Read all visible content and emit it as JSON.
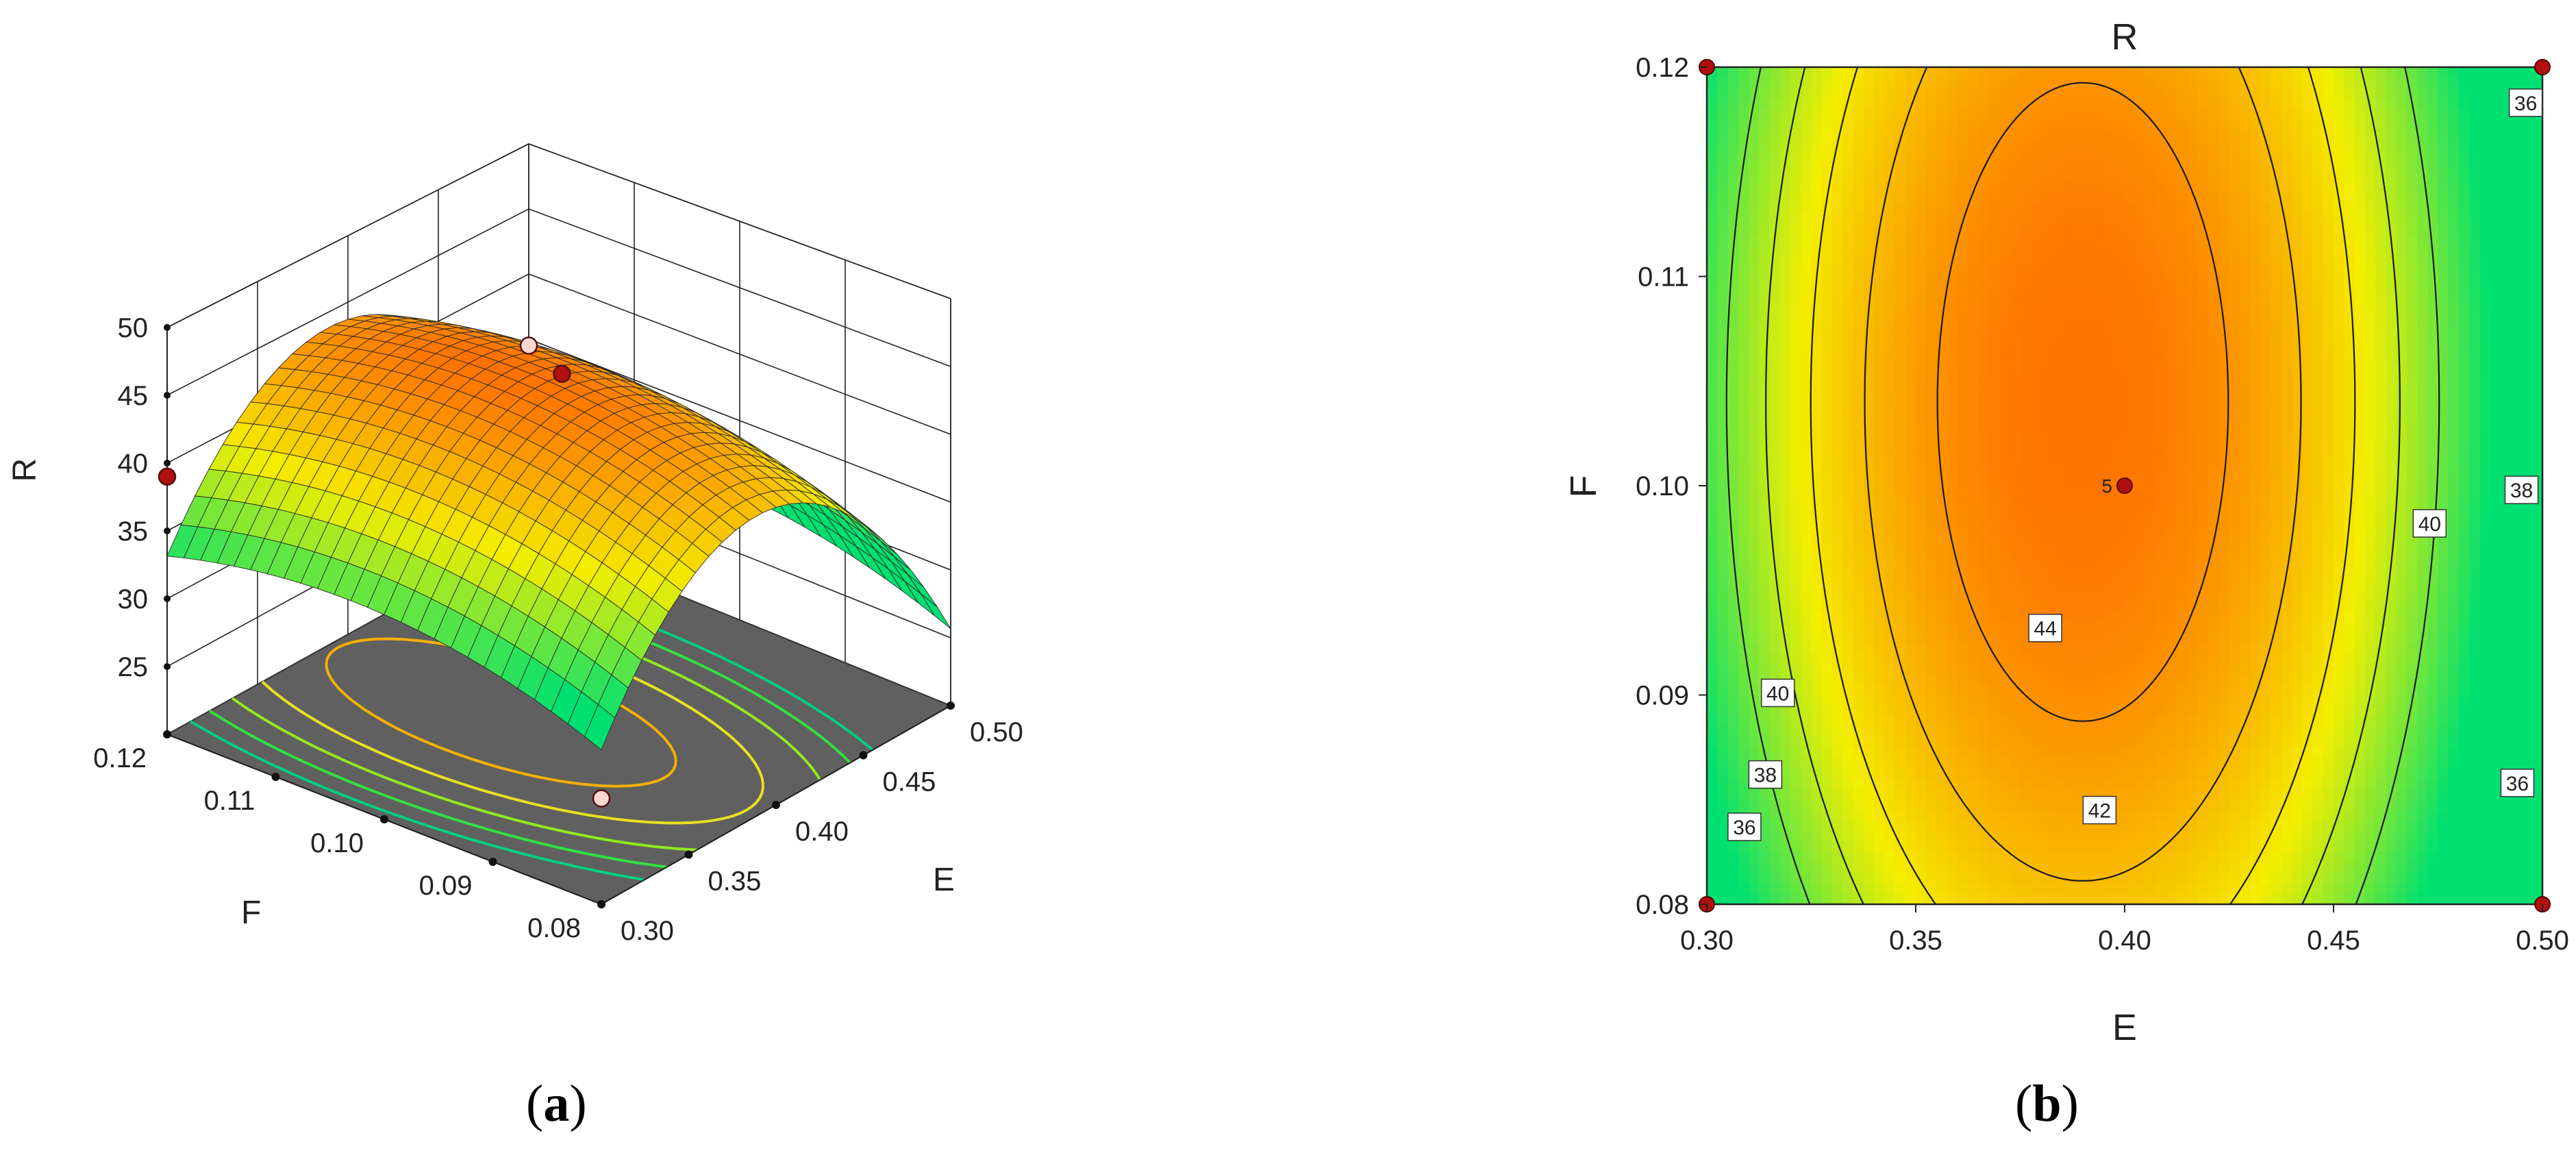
{
  "figure": {
    "panel_a_letter": "a",
    "panel_b_letter": "b"
  },
  "chart_data": [
    {
      "type": "surface3d",
      "panel": "a",
      "zlabel": "R",
      "xlabel": "E",
      "ylabel": "F",
      "x_range": [
        0.3,
        0.5
      ],
      "y_range": [
        0.08,
        0.12
      ],
      "z_range": [
        25,
        50
      ],
      "x_ticks": [
        "0.30",
        "0.35",
        "0.40",
        "0.45",
        "0.50"
      ],
      "y_ticks": [
        "0.08",
        "0.09",
        "0.10",
        "0.11",
        "0.12"
      ],
      "z_ticks": [
        "25",
        "30",
        "35",
        "40",
        "45",
        "50"
      ],
      "grid": true,
      "floor_contours": [
        36,
        38,
        40,
        42,
        44
      ],
      "design_points": [
        {
          "E": 0.4,
          "F": 0.1,
          "R": 45.5,
          "label": "5"
        },
        {
          "E": 0.3,
          "F": 0.12,
          "R": 39.0
        },
        {
          "E": 0.5,
          "F": 0.12,
          "R": 34.5
        },
        {
          "E": 0.3,
          "F": 0.08,
          "R": 27.5
        }
      ],
      "colors": {
        "low": "#00e070",
        "mid": "#f4ee00",
        "high": "#ff6a00",
        "floor": "#606060"
      }
    },
    {
      "type": "contour",
      "panel": "b",
      "title": "R",
      "xlabel": "E",
      "ylabel": "F",
      "x_range": [
        0.3,
        0.5
      ],
      "y_range": [
        0.08,
        0.12
      ],
      "x_ticks": [
        "0.30",
        "0.35",
        "0.40",
        "0.45",
        "0.50"
      ],
      "y_ticks": [
        "0.08",
        "0.09",
        "0.10",
        "0.11",
        "0.12"
      ],
      "contour_levels": [
        36,
        38,
        40,
        42,
        44
      ],
      "contour_labels": [
        {
          "text": "36",
          "E": 0.496,
          "F": 0.1183
        },
        {
          "text": "38",
          "E": 0.495,
          "F": 0.0998
        },
        {
          "text": "40",
          "E": 0.473,
          "F": 0.0982
        },
        {
          "text": "36",
          "E": 0.494,
          "F": 0.0858
        },
        {
          "text": "44",
          "E": 0.381,
          "F": 0.0932
        },
        {
          "text": "42",
          "E": 0.394,
          "F": 0.0845
        },
        {
          "text": "40",
          "E": 0.317,
          "F": 0.0901
        },
        {
          "text": "38",
          "E": 0.314,
          "F": 0.0862
        },
        {
          "text": "36",
          "E": 0.309,
          "F": 0.0837
        }
      ],
      "design_points": [
        {
          "E": 0.4,
          "F": 0.1,
          "label": "5"
        },
        {
          "E": 0.3,
          "F": 0.12
        },
        {
          "E": 0.5,
          "F": 0.12
        },
        {
          "E": 0.3,
          "F": 0.08
        },
        {
          "E": 0.5,
          "F": 0.08
        }
      ],
      "colors": {
        "low": "#00e070",
        "mid": "#f4ee00",
        "high": "#ff6a00",
        "point": "#b01010"
      }
    }
  ]
}
